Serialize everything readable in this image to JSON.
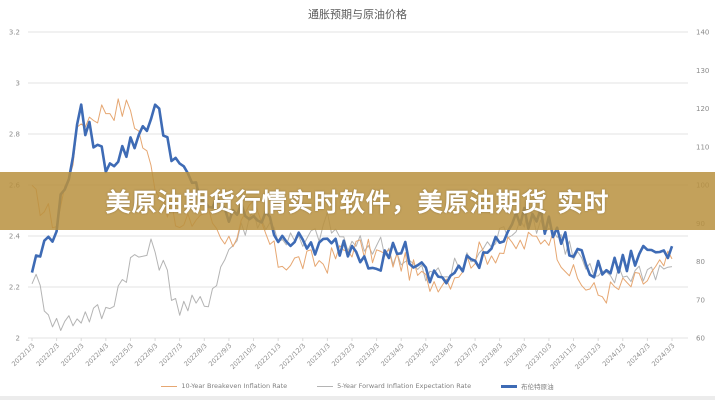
{
  "chart": {
    "title": "通胀预期与原油价格"
  },
  "banner": {
    "text": "美原油期货行情实时软件，美原油期货 实时",
    "color": "#b8913e"
  },
  "legend": [
    {
      "label": "10-Year Breakeven Inflation Rate",
      "color": "#e6a772"
    },
    {
      "label": "5-Year Forward Inflation Expectation Rate",
      "color": "#b4b4b4"
    },
    {
      "label": "布伦特原油",
      "color": "#3e6bb5"
    }
  ],
  "chart_data": {
    "type": "line",
    "title": "通胀预期与原油价格",
    "xlabel": "",
    "ylabel_left": "",
    "ylabel_right": "",
    "ylim_left": [
      2,
      3.2
    ],
    "ylim_right": [
      60,
      140
    ],
    "yticks_left": [
      "2",
      "2.2",
      "2.4",
      "2.6",
      "2.8",
      "3",
      "3.2"
    ],
    "yticks_right": [
      "60",
      "70",
      "80",
      "90",
      "100",
      "110",
      "120",
      "130",
      "140"
    ],
    "grid": true,
    "legend_position": "bottom",
    "categories": [
      "2022/1/3",
      "2022/2/3",
      "2022/3/3",
      "2022/4/3",
      "2022/5/3",
      "2022/6/3",
      "2022/7/3",
      "2022/8/3",
      "2022/9/3",
      "2022/10/3",
      "2022/11/3",
      "2022/12/3",
      "2023/1/3",
      "2023/2/3",
      "2023/3/3",
      "2023/4/3",
      "2023/5/3",
      "2023/6/3",
      "2023/7/3",
      "2023/8/3",
      "2023/9/3",
      "2023/10/3",
      "2023/11/3",
      "2023/12/3",
      "2024/1/3",
      "2024/2/3",
      "2024/3/3"
    ],
    "series": [
      {
        "name": "10-Year Breakeven Inflation Rate",
        "axis": "left",
        "color": "#e6a772",
        "values": [
          2.56,
          2.45,
          2.85,
          2.9,
          2.9,
          2.62,
          2.42,
          2.5,
          2.38,
          2.5,
          2.3,
          2.3,
          2.3,
          2.36,
          2.33,
          2.3,
          2.22,
          2.24,
          2.33,
          2.34,
          2.37,
          2.41,
          2.24,
          2.17,
          2.2,
          2.23,
          2.31
        ]
      },
      {
        "name": "5-Year Forward Inflation Expectation Rate",
        "axis": "left",
        "color": "#b4b4b4",
        "values": [
          2.25,
          2.05,
          2.09,
          2.1,
          2.3,
          2.35,
          2.12,
          2.13,
          2.35,
          2.49,
          2.41,
          2.36,
          2.45,
          2.35,
          2.37,
          2.32,
          2.24,
          2.26,
          2.32,
          2.4,
          2.48,
          2.44,
          2.34,
          2.22,
          2.25,
          2.27,
          2.28
        ]
      },
      {
        "name": "布伦特原油",
        "axis": "right",
        "color": "#3e6bb5",
        "values": [
          78,
          90,
          118,
          106,
          110,
          120,
          104,
          96,
          92,
          93,
          88,
          84,
          84,
          84,
          80,
          84,
          76,
          76,
          80,
          87,
          92,
          90,
          82,
          77,
          79,
          83,
          84
        ]
      }
    ]
  }
}
